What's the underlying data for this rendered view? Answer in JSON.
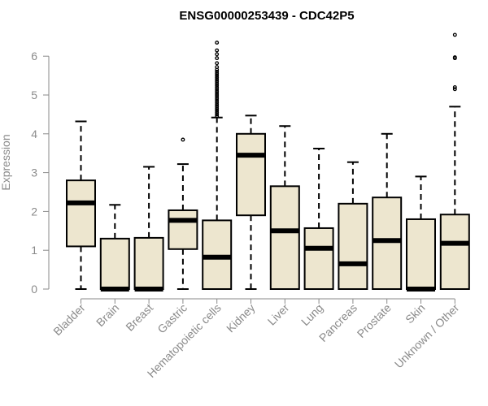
{
  "chart_data": {
    "type": "boxplot",
    "title": "ENSG00000253439 - CDC42P5",
    "ylabel": "Expression",
    "xlabel": "",
    "ylim": [
      0,
      6.6
    ],
    "yticks": [
      0,
      1,
      2,
      3,
      4,
      5,
      6
    ],
    "grid": false,
    "legend": "none",
    "colors": {
      "box_fill": "#ede6cf",
      "stroke": "#000000",
      "axis_text": "#8a8a8a"
    },
    "categories": [
      "Bladder",
      "Brain",
      "Breast",
      "Gastric",
      "Hematopoietic cells",
      "Kidney",
      "Liver",
      "Lung",
      "Pancreas",
      "Prostate",
      "Skin",
      "Unknown / Other"
    ],
    "boxes": [
      {
        "category": "Bladder",
        "whisker_low": 0,
        "q1": 1.1,
        "median": 2.22,
        "q3": 2.8,
        "whisker_high": 4.32,
        "outliers": []
      },
      {
        "category": "Brain",
        "whisker_low": 0,
        "q1": 0,
        "median": 0,
        "q3": 1.3,
        "whisker_high": 2.17,
        "outliers": []
      },
      {
        "category": "Breast",
        "whisker_low": 0,
        "q1": 0,
        "median": 0,
        "q3": 1.32,
        "whisker_high": 3.15,
        "outliers": []
      },
      {
        "category": "Gastric",
        "whisker_low": 0,
        "q1": 1.03,
        "median": 1.77,
        "q3": 2.03,
        "whisker_high": 3.22,
        "outliers": [
          3.85
        ]
      },
      {
        "category": "Hematopoietic cells",
        "whisker_low": 0,
        "q1": 0,
        "median": 0.82,
        "q3": 1.77,
        "whisker_high": 4.42,
        "outliers": [
          4.45,
          4.5,
          4.55,
          4.6,
          4.65,
          4.7,
          4.75,
          4.8,
          4.85,
          4.9,
          4.95,
          5.0,
          5.05,
          5.1,
          5.15,
          5.2,
          5.25,
          5.3,
          5.35,
          5.4,
          5.45,
          5.5,
          5.55,
          5.6,
          5.65,
          5.72,
          5.82,
          5.95,
          6.05,
          6.15,
          6.35
        ]
      },
      {
        "category": "Kidney",
        "whisker_low": 0,
        "q1": 1.9,
        "median": 3.45,
        "q3": 4.0,
        "whisker_high": 4.47,
        "outliers": []
      },
      {
        "category": "Liver",
        "whisker_low": 0,
        "q1": 0,
        "median": 1.5,
        "q3": 2.65,
        "whisker_high": 4.2,
        "outliers": []
      },
      {
        "category": "Lung",
        "whisker_low": 0,
        "q1": 0,
        "median": 1.05,
        "q3": 1.57,
        "whisker_high": 3.62,
        "outliers": []
      },
      {
        "category": "Pancreas",
        "whisker_low": 0,
        "q1": 0,
        "median": 0.65,
        "q3": 2.2,
        "whisker_high": 3.27,
        "outliers": []
      },
      {
        "category": "Prostate",
        "whisker_low": 0,
        "q1": 0,
        "median": 1.25,
        "q3": 2.36,
        "whisker_high": 4.0,
        "outliers": []
      },
      {
        "category": "Skin",
        "whisker_low": 0,
        "q1": 0,
        "median": 0,
        "q3": 1.8,
        "whisker_high": 2.9,
        "outliers": []
      },
      {
        "category": "Unknown / Other",
        "whisker_low": 0,
        "q1": 0,
        "median": 1.18,
        "q3": 1.92,
        "whisker_high": 4.7,
        "outliers": [
          5.15,
          5.2,
          5.95,
          5.97,
          6.55
        ]
      }
    ]
  }
}
